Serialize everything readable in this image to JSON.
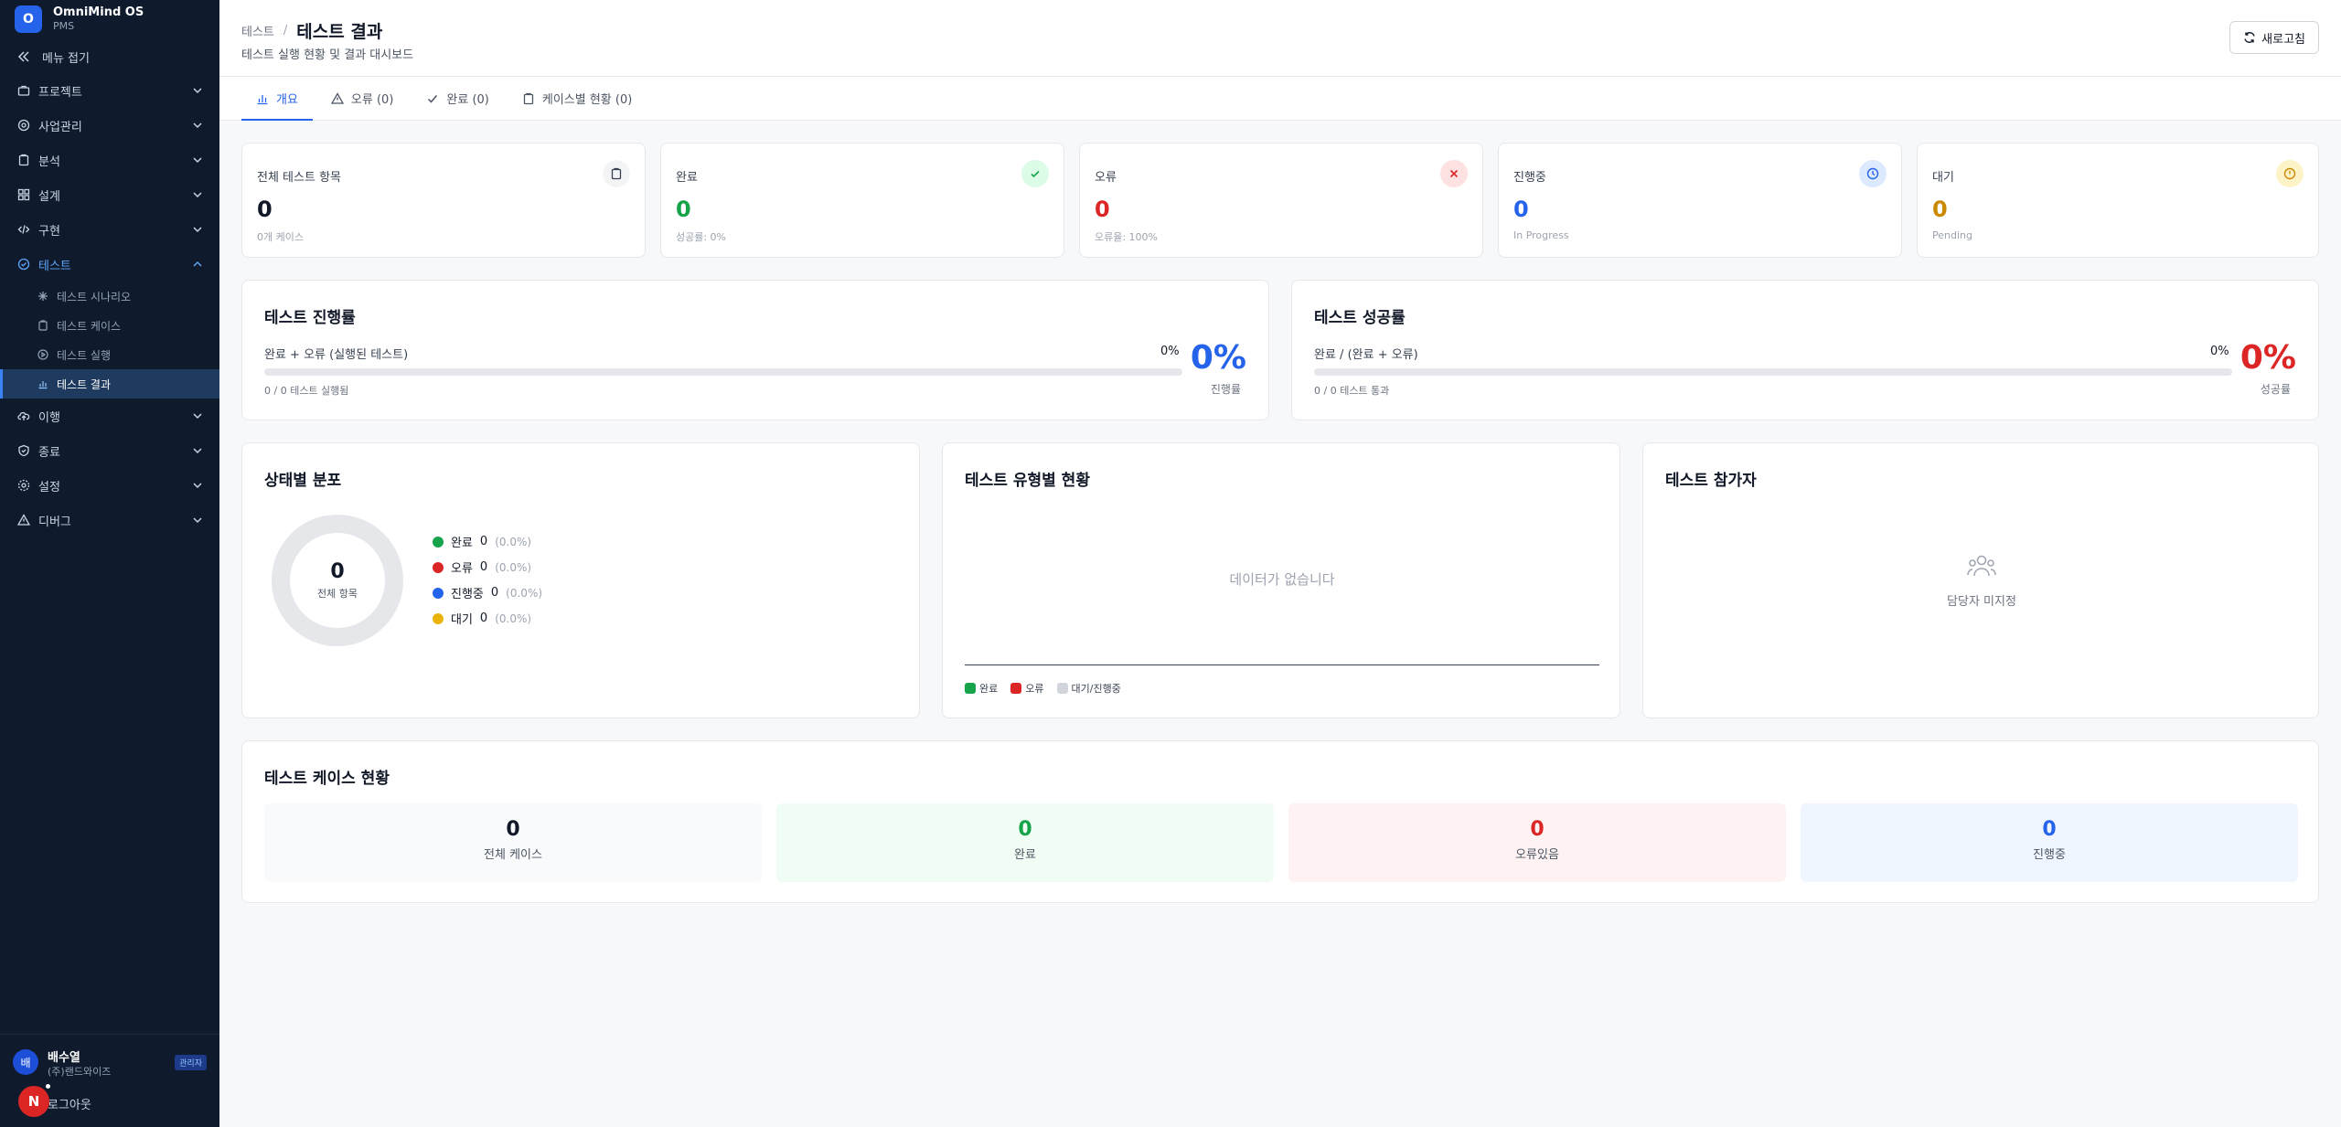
{
  "app": {
    "logo_letter": "O",
    "name": "OmniMind OS",
    "sub": "PMS"
  },
  "sidebar": {
    "collapse_label": "메뉴 접기",
    "items": [
      {
        "label": "프로젝트",
        "icon": "briefcase-icon"
      },
      {
        "label": "사업관리",
        "icon": "settings-circle-icon"
      },
      {
        "label": "분석",
        "icon": "clipboard-icon"
      },
      {
        "label": "설계",
        "icon": "layout-grid-icon"
      },
      {
        "label": "구현",
        "icon": "code-icon"
      },
      {
        "label": "테스트",
        "icon": "check-circle-icon"
      }
    ],
    "test_sub": [
      {
        "label": "테스트 시나리오",
        "icon": "sparkle-icon"
      },
      {
        "label": "테스트 케이스",
        "icon": "clipboard-icon"
      },
      {
        "label": "테스트 실행",
        "icon": "play-circle-icon"
      },
      {
        "label": "테스트 결과",
        "icon": "bar-chart-icon"
      }
    ],
    "items_after": [
      {
        "label": "이행",
        "icon": "cloud-upload-icon"
      },
      {
        "label": "종료",
        "icon": "shield-check-icon"
      },
      {
        "label": "설정",
        "icon": "gear-icon"
      },
      {
        "label": "디버그",
        "icon": "warning-icon"
      }
    ]
  },
  "user": {
    "avatar_letter": "배",
    "name": "배수열",
    "org": "(주)랜드와이즈",
    "role": "관리자",
    "logout": "로그아웃",
    "n_badge": "N"
  },
  "header": {
    "breadcrumb_parent": "테스트",
    "breadcrumb_sep": "/",
    "title": "테스트 결과",
    "desc": "테스트 실행 현황 및 결과 대시보드",
    "refresh_label": "새로고침"
  },
  "tabs": [
    {
      "label": "개요"
    },
    {
      "label": "오류 (0)"
    },
    {
      "label": "완료 (0)"
    },
    {
      "label": "케이스별 현황 (0)"
    }
  ],
  "stats": [
    {
      "title": "전체 테스트 항목",
      "value": "0",
      "sub": "0개 케이스",
      "color": "#111827",
      "icon_bg": "#f3f4f6",
      "icon_color": "#374151"
    },
    {
      "title": "완료",
      "value": "0",
      "sub": "성공률: 0%",
      "color": "#16a34a",
      "icon_bg": "#dcfce7",
      "icon_color": "#16a34a"
    },
    {
      "title": "오류",
      "value": "0",
      "sub": "오류율: 100%",
      "color": "#dc2626",
      "icon_bg": "#fee2e2",
      "icon_color": "#dc2626"
    },
    {
      "title": "진행중",
      "value": "0",
      "sub": "In Progress",
      "color": "#2563eb",
      "icon_bg": "#dbeafe",
      "icon_color": "#2563eb"
    },
    {
      "title": "대기",
      "value": "0",
      "sub": "Pending",
      "color": "#ca8a04",
      "icon_bg": "#fef3c7",
      "icon_color": "#ca8a04"
    }
  ],
  "progress": {
    "title": "테스트 진행률",
    "label": "완료 + 오류 (실행된 테스트)",
    "pct_text": "0%",
    "fraction": 0,
    "foot": "0 / 0 테스트 실행됨",
    "big": "0%",
    "big_caption": "진행률",
    "big_color": "#2563eb"
  },
  "success": {
    "title": "테스트 성공률",
    "label": "완료 / (완료 + 오류)",
    "pct_text": "0%",
    "fraction": 0,
    "foot": "0 / 0 테스트 통과",
    "big": "0%",
    "big_caption": "성공률",
    "big_color": "#dc2626"
  },
  "distribution": {
    "title": "상태별 분포",
    "center_value": "0",
    "center_label": "전체 항목",
    "legend": [
      {
        "label": "완료",
        "value": "0",
        "pct": "(0.0%)",
        "color": "#16a34a"
      },
      {
        "label": "오류",
        "value": "0",
        "pct": "(0.0%)",
        "color": "#dc2626"
      },
      {
        "label": "진행중",
        "value": "0",
        "pct": "(0.0%)",
        "color": "#2563eb"
      },
      {
        "label": "대기",
        "value": "0",
        "pct": "(0.0%)",
        "color": "#eab308"
      }
    ]
  },
  "by_type": {
    "title": "테스트 유형별 현황",
    "empty": "데이터가 없습니다",
    "legend": [
      {
        "label": "완료",
        "color": "#16a34a"
      },
      {
        "label": "오류",
        "color": "#dc2626"
      },
      {
        "label": "대기/진행중",
        "color": "#d1d5db"
      }
    ]
  },
  "participants": {
    "title": "테스트 참가자",
    "empty": "담당자 미지정"
  },
  "case_status": {
    "title": "테스트 케이스 현황",
    "boxes": [
      {
        "value": "0",
        "label": "전체 케이스",
        "bg": "#f9fafb",
        "color": "#111827"
      },
      {
        "value": "0",
        "label": "완료",
        "bg": "#f0fdf4",
        "color": "#16a34a"
      },
      {
        "value": "0",
        "label": "오류있음",
        "bg": "#fef2f2",
        "color": "#dc2626"
      },
      {
        "value": "0",
        "label": "진행중",
        "bg": "#eff6ff",
        "color": "#2563eb"
      }
    ]
  }
}
